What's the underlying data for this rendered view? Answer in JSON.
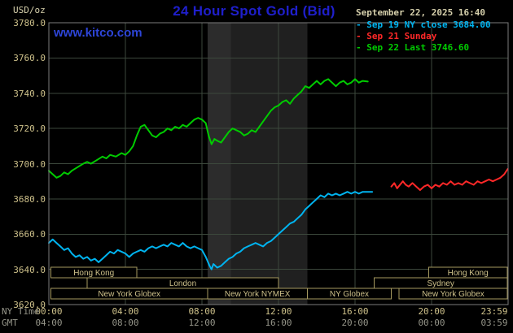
{
  "header": {
    "units": "USD/oz",
    "title": "24 Hour Spot Gold (Bid)",
    "datetime": "September 22, 2025 16:40",
    "watermark": "www.kitco.com"
  },
  "legend": {
    "items": [
      {
        "marker": "-",
        "label": "Sep 19 NY close 3684.00",
        "color": "#00b4f0"
      },
      {
        "marker": "-",
        "label": "Sep 21 Sunday",
        "color": "#ff2828"
      },
      {
        "marker": "-",
        "label": "Sep 22 Last 3746.60",
        "color": "#00cc00"
      }
    ]
  },
  "axes": {
    "y_ticks": [
      "3780.0",
      "3760.0",
      "3740.0",
      "3720.0",
      "3700.0",
      "3680.0",
      "3660.0",
      "3640.0",
      "3620.0"
    ],
    "tick_hours": [
      0,
      4,
      8,
      12,
      16,
      20,
      24
    ],
    "x_ny": {
      "row_label": "NY Time",
      "ticks": [
        "00:00",
        "04:00",
        "08:00",
        "12:00",
        "16:00",
        "20:00",
        "23:59"
      ]
    },
    "x_gmt": {
      "row_label": "GMT",
      "ticks": [
        "04:00",
        "08:00",
        "12:00",
        "16:00",
        "20:00",
        "00:00",
        "03:59"
      ]
    }
  },
  "sessions": [
    {
      "row": 0,
      "label": "Hong Kong",
      "from": 0.1,
      "to": 4.6
    },
    {
      "row": 0,
      "label": "Hong Kong",
      "from": 19.85,
      "to": 23.95
    },
    {
      "row": 1,
      "label": "London",
      "from": 2.0,
      "to": 12.0
    },
    {
      "row": 1,
      "label": "Sydney",
      "from": 17.0,
      "to": 23.95
    },
    {
      "row": 2,
      "label": "New York Globex",
      "from": 0.1,
      "to": 8.3
    },
    {
      "row": 2,
      "label": "New York NYMEX",
      "from": 8.3,
      "to": 13.5
    },
    {
      "row": 2,
      "label": "NY Globex",
      "from": 13.5,
      "to": 17.9
    },
    {
      "row": 2,
      "label": "New York Globex",
      "from": 18.3,
      "to": 23.95
    }
  ],
  "chart_data": {
    "type": "line",
    "title": "24 Hour Spot Gold (Bid)",
    "x_unit": "hour (NY time)",
    "y_unit": "USD/oz",
    "x_range": [
      0,
      24
    ],
    "y_range": [
      3620,
      3780
    ],
    "y_tick_step": 20,
    "grid": true,
    "legend_position": "top-right",
    "bands": [
      {
        "from": 8.3,
        "to": 9.5,
        "color": "#2c2c2c"
      },
      {
        "from": 9.5,
        "to": 13.5,
        "color": "#202020"
      }
    ],
    "series": [
      {
        "name": "Sep 19 NY close",
        "close": 3684.0,
        "color": "#00b4f0",
        "points": [
          [
            0,
            3655
          ],
          [
            0.2,
            3657
          ],
          [
            0.4,
            3655
          ],
          [
            0.6,
            3653
          ],
          [
            0.8,
            3651
          ],
          [
            1,
            3652
          ],
          [
            1.2,
            3649
          ],
          [
            1.4,
            3647
          ],
          [
            1.6,
            3648
          ],
          [
            1.8,
            3646
          ],
          [
            2,
            3647
          ],
          [
            2.2,
            3645
          ],
          [
            2.4,
            3646
          ],
          [
            2.6,
            3644
          ],
          [
            2.8,
            3646
          ],
          [
            3,
            3648
          ],
          [
            3.2,
            3650
          ],
          [
            3.4,
            3649
          ],
          [
            3.6,
            3651
          ],
          [
            3.8,
            3650
          ],
          [
            4,
            3649
          ],
          [
            4.2,
            3647
          ],
          [
            4.4,
            3649
          ],
          [
            4.6,
            3650
          ],
          [
            4.8,
            3651
          ],
          [
            5,
            3650
          ],
          [
            5.2,
            3652
          ],
          [
            5.4,
            3653
          ],
          [
            5.6,
            3652
          ],
          [
            5.8,
            3653
          ],
          [
            6,
            3654
          ],
          [
            6.2,
            3653
          ],
          [
            6.4,
            3655
          ],
          [
            6.6,
            3654
          ],
          [
            6.8,
            3653
          ],
          [
            7,
            3655
          ],
          [
            7.2,
            3653
          ],
          [
            7.4,
            3652
          ],
          [
            7.6,
            3653
          ],
          [
            7.8,
            3652
          ],
          [
            8,
            3651
          ],
          [
            8.2,
            3647
          ],
          [
            8.4,
            3642
          ],
          [
            8.5,
            3640
          ],
          [
            8.6,
            3643
          ],
          [
            8.8,
            3641
          ],
          [
            9,
            3642
          ],
          [
            9.2,
            3644
          ],
          [
            9.4,
            3646
          ],
          [
            9.6,
            3647
          ],
          [
            9.8,
            3649
          ],
          [
            10,
            3650
          ],
          [
            10.2,
            3652
          ],
          [
            10.4,
            3653
          ],
          [
            10.6,
            3654
          ],
          [
            10.8,
            3655
          ],
          [
            11,
            3654
          ],
          [
            11.2,
            3653
          ],
          [
            11.4,
            3655
          ],
          [
            11.6,
            3656
          ],
          [
            11.8,
            3658
          ],
          [
            12,
            3660
          ],
          [
            12.2,
            3662
          ],
          [
            12.4,
            3664
          ],
          [
            12.6,
            3666
          ],
          [
            12.8,
            3667
          ],
          [
            13,
            3669
          ],
          [
            13.2,
            3671
          ],
          [
            13.4,
            3674
          ],
          [
            13.6,
            3676
          ],
          [
            13.8,
            3678
          ],
          [
            14,
            3680
          ],
          [
            14.2,
            3682
          ],
          [
            14.4,
            3681
          ],
          [
            14.6,
            3683
          ],
          [
            14.8,
            3682
          ],
          [
            15,
            3683
          ],
          [
            15.2,
            3682
          ],
          [
            15.4,
            3683
          ],
          [
            15.6,
            3684
          ],
          [
            15.8,
            3683
          ],
          [
            16,
            3684
          ],
          [
            16.2,
            3683
          ],
          [
            16.4,
            3684
          ],
          [
            16.6,
            3684
          ],
          [
            16.9,
            3684
          ]
        ]
      },
      {
        "name": "Sep 21 Sunday",
        "color": "#ff2828",
        "points": [
          [
            17.9,
            3687
          ],
          [
            18.05,
            3689
          ],
          [
            18.2,
            3686
          ],
          [
            18.35,
            3688
          ],
          [
            18.5,
            3690
          ],
          [
            18.65,
            3688
          ],
          [
            18.8,
            3687
          ],
          [
            19,
            3689
          ],
          [
            19.2,
            3687
          ],
          [
            19.4,
            3685
          ],
          [
            19.6,
            3687
          ],
          [
            19.8,
            3688
          ],
          [
            20,
            3686
          ],
          [
            20.2,
            3688
          ],
          [
            20.4,
            3687
          ],
          [
            20.6,
            3689
          ],
          [
            20.8,
            3688
          ],
          [
            21,
            3690
          ],
          [
            21.2,
            3688
          ],
          [
            21.4,
            3689
          ],
          [
            21.6,
            3688
          ],
          [
            21.8,
            3690
          ],
          [
            22,
            3689
          ],
          [
            22.2,
            3688
          ],
          [
            22.4,
            3690
          ],
          [
            22.6,
            3689
          ],
          [
            22.8,
            3690
          ],
          [
            23,
            3691
          ],
          [
            23.2,
            3690
          ],
          [
            23.4,
            3691
          ],
          [
            23.6,
            3692
          ],
          [
            23.8,
            3694
          ],
          [
            23.98,
            3697
          ]
        ]
      },
      {
        "name": "Sep 22 Last",
        "last": 3746.6,
        "color": "#00cc00",
        "points": [
          [
            0,
            3696
          ],
          [
            0.2,
            3694
          ],
          [
            0.4,
            3692
          ],
          [
            0.6,
            3693
          ],
          [
            0.8,
            3695
          ],
          [
            1,
            3694
          ],
          [
            1.2,
            3696
          ],
          [
            1.5,
            3698
          ],
          [
            1.8,
            3700
          ],
          [
            2,
            3701
          ],
          [
            2.2,
            3700
          ],
          [
            2.5,
            3702
          ],
          [
            2.8,
            3704
          ],
          [
            3,
            3703
          ],
          [
            3.2,
            3705
          ],
          [
            3.5,
            3704
          ],
          [
            3.8,
            3706
          ],
          [
            4,
            3705
          ],
          [
            4.2,
            3707
          ],
          [
            4.4,
            3710
          ],
          [
            4.6,
            3716
          ],
          [
            4.8,
            3721
          ],
          [
            5,
            3722
          ],
          [
            5.2,
            3719
          ],
          [
            5.4,
            3716
          ],
          [
            5.6,
            3715
          ],
          [
            5.8,
            3717
          ],
          [
            6,
            3718
          ],
          [
            6.2,
            3720
          ],
          [
            6.4,
            3719
          ],
          [
            6.6,
            3721
          ],
          [
            6.8,
            3720
          ],
          [
            7,
            3722
          ],
          [
            7.2,
            3721
          ],
          [
            7.4,
            3723
          ],
          [
            7.6,
            3725
          ],
          [
            7.8,
            3726
          ],
          [
            8,
            3725
          ],
          [
            8.2,
            3723
          ],
          [
            8.35,
            3716
          ],
          [
            8.5,
            3711
          ],
          [
            8.65,
            3714
          ],
          [
            8.8,
            3713
          ],
          [
            9,
            3712
          ],
          [
            9.2,
            3715
          ],
          [
            9.4,
            3718
          ],
          [
            9.6,
            3720
          ],
          [
            9.8,
            3719
          ],
          [
            10,
            3718
          ],
          [
            10.2,
            3716
          ],
          [
            10.4,
            3717
          ],
          [
            10.6,
            3719
          ],
          [
            10.8,
            3718
          ],
          [
            11,
            3721
          ],
          [
            11.2,
            3724
          ],
          [
            11.4,
            3727
          ],
          [
            11.6,
            3730
          ],
          [
            11.8,
            3732
          ],
          [
            12,
            3733
          ],
          [
            12.2,
            3735
          ],
          [
            12.4,
            3736
          ],
          [
            12.6,
            3734
          ],
          [
            12.8,
            3737
          ],
          [
            13,
            3739
          ],
          [
            13.2,
            3741
          ],
          [
            13.4,
            3744
          ],
          [
            13.6,
            3743
          ],
          [
            13.8,
            3745
          ],
          [
            14,
            3747
          ],
          [
            14.2,
            3745
          ],
          [
            14.4,
            3747
          ],
          [
            14.6,
            3748
          ],
          [
            14.8,
            3746
          ],
          [
            15,
            3744
          ],
          [
            15.2,
            3746
          ],
          [
            15.4,
            3747
          ],
          [
            15.6,
            3745
          ],
          [
            15.8,
            3746
          ],
          [
            16,
            3748
          ],
          [
            16.2,
            3746
          ],
          [
            16.4,
            3747
          ],
          [
            16.67,
            3746.6
          ]
        ]
      }
    ]
  },
  "colors": {
    "background": "#000000",
    "grid": "#3c483c",
    "frame": "#7d7d7d",
    "text_tan": "#cdc08a",
    "text_gray": "#96968a",
    "date_text": "#d6d0ac",
    "title_blue": "#1f1fcc",
    "watermark_blue": "#2d45d8",
    "session_border": "#a69a60",
    "session_text": "#cdc08a",
    "session_fill": "#000000"
  }
}
